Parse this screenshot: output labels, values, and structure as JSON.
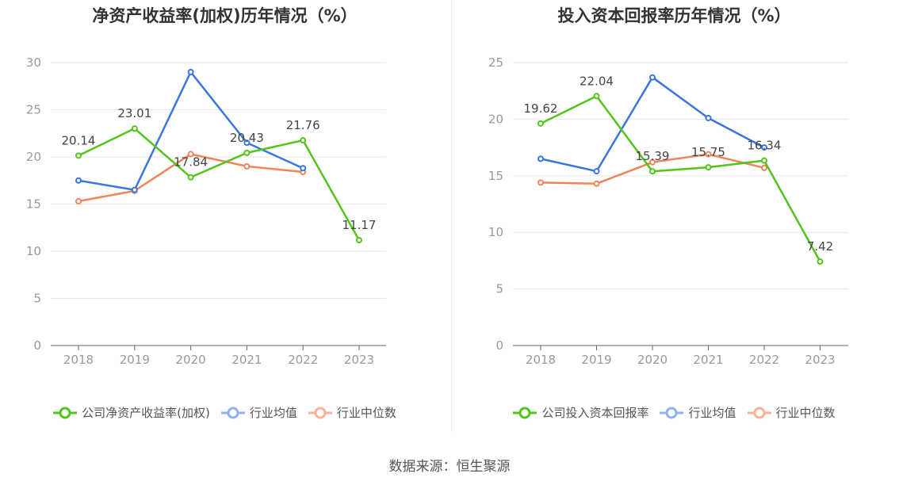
{
  "source_label": "数据来源：恒生聚源",
  "colors": {
    "company": "#52c41a",
    "avg": "#3a75e0",
    "median": "#f0845a",
    "legend_avg": "#8fb1f0",
    "legend_median": "#f8b394"
  },
  "chart_data": [
    {
      "type": "line",
      "title": "净资产收益率(加权)历年情况（%）",
      "x": [
        "2018",
        "2019",
        "2020",
        "2021",
        "2022",
        "2023"
      ],
      "ylim": [
        0,
        30
      ],
      "yticks": [
        0,
        5,
        10,
        15,
        20,
        25,
        30
      ],
      "grid": true,
      "legend_position": "bottom",
      "series": [
        {
          "name": "公司净资产收益率(加权)",
          "key": "company",
          "values": [
            20.14,
            23.01,
            17.84,
            20.43,
            21.76,
            11.17
          ],
          "labels": [
            "20.14",
            "23.01",
            "17.84",
            "20.43",
            "21.76",
            "11.17"
          ]
        },
        {
          "name": "行业均值",
          "key": "avg",
          "values": [
            17.5,
            16.5,
            29.0,
            21.5,
            18.8,
            null
          ]
        },
        {
          "name": "行业中位数",
          "key": "median",
          "values": [
            15.3,
            16.4,
            20.3,
            19.0,
            18.4,
            null
          ]
        }
      ]
    },
    {
      "type": "line",
      "title": "投入资本回报率历年情况（%）",
      "x": [
        "2018",
        "2019",
        "2020",
        "2021",
        "2022",
        "2023"
      ],
      "ylim": [
        0,
        25
      ],
      "yticks": [
        0,
        5,
        10,
        15,
        20,
        25
      ],
      "grid": true,
      "legend_position": "bottom",
      "series": [
        {
          "name": "公司投入资本回报率",
          "key": "company",
          "values": [
            19.62,
            22.04,
            15.39,
            15.75,
            16.34,
            7.42
          ],
          "labels": [
            "19.62",
            "22.04",
            "15.39",
            "15.75",
            "16.34",
            "7.42"
          ]
        },
        {
          "name": "行业均值",
          "key": "avg",
          "values": [
            16.5,
            15.4,
            23.7,
            20.1,
            17.5,
            null
          ]
        },
        {
          "name": "行业中位数",
          "key": "median",
          "values": [
            14.4,
            14.3,
            16.2,
            16.9,
            15.7,
            null
          ]
        }
      ]
    }
  ]
}
